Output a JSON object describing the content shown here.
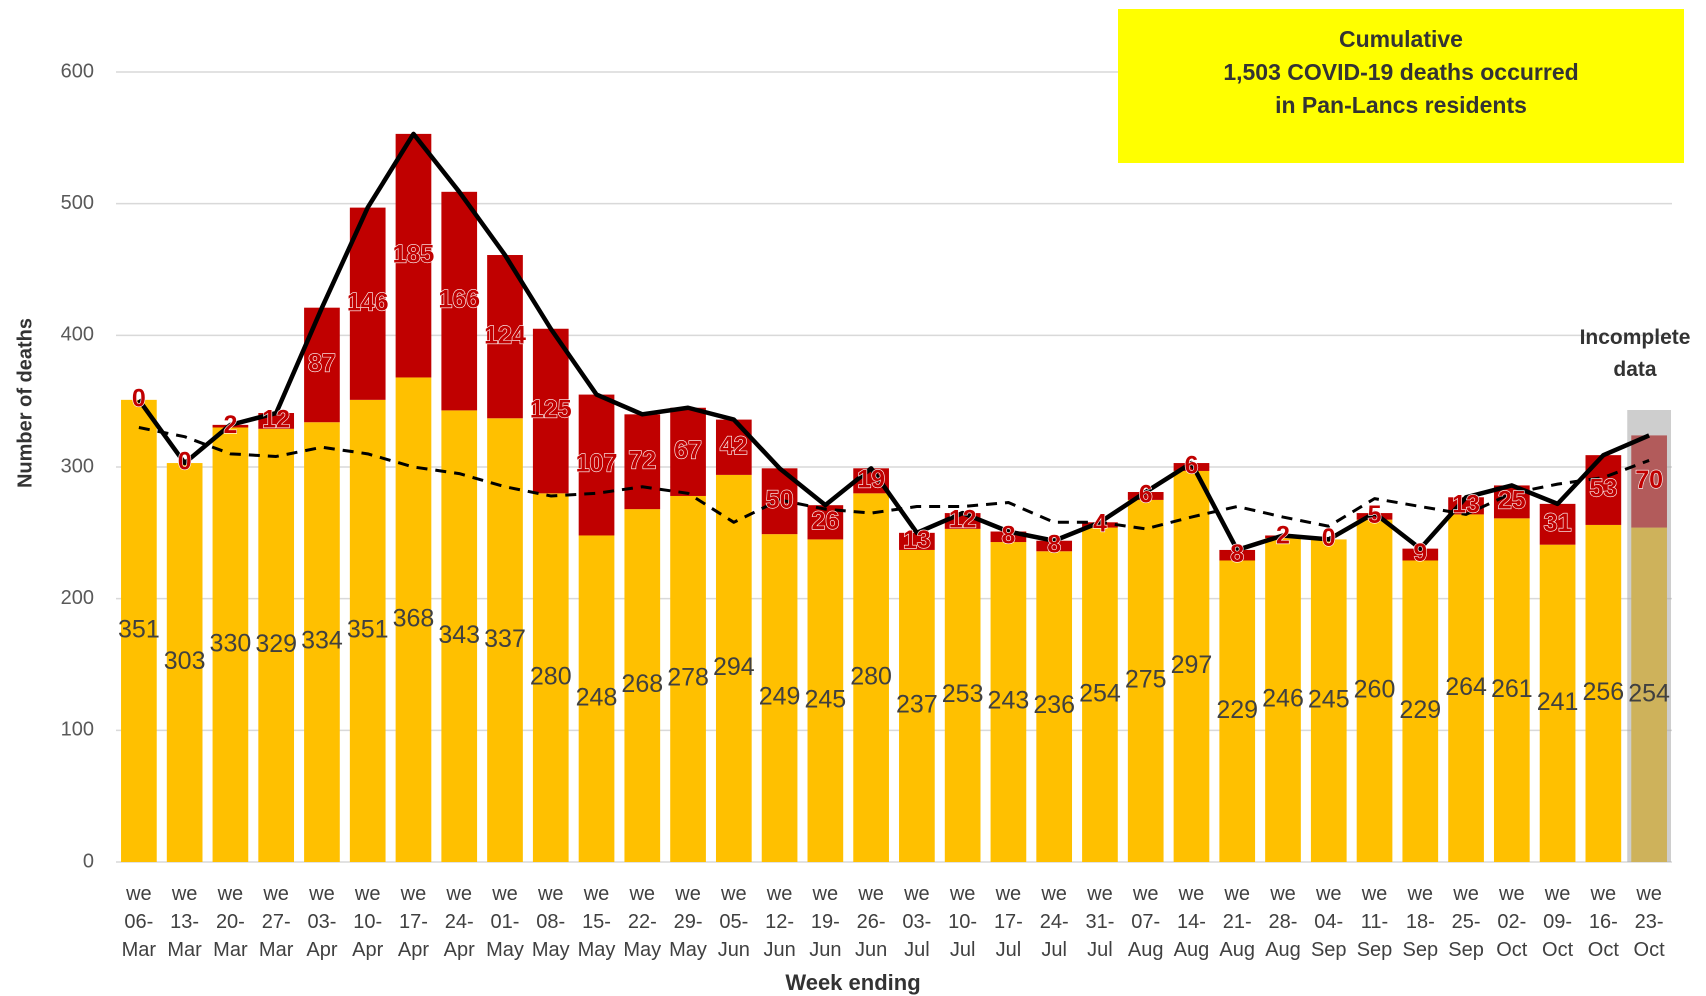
{
  "chart_data": {
    "type": "bar",
    "stacked": true,
    "ylabel": "Number of deaths",
    "xlabel": "Week ending",
    "annotation": "Cumulative\n1,503 COVID-19 deaths occurred\nin Pan-Lancs residents",
    "annotation_color": "#ffff00",
    "incomplete": {
      "text": "Incomplete\ndata",
      "category": "we\n23-\nOct",
      "color": "#a6a6a6"
    },
    "categories": [
      "we\n06-\nMar",
      "we\n13-\nMar",
      "we\n20-\nMar",
      "we\n27-\nMar",
      "we\n03-\nApr",
      "we\n10-\nApr",
      "we\n17-\nApr",
      "we\n24-\nApr",
      "we\n01-\nMay",
      "we\n08-\nMay",
      "we\n15-\nMay",
      "we\n22-\nMay",
      "we\n29-\nMay",
      "we\n05-\nJun",
      "we\n12-\nJun",
      "we\n19-\nJun",
      "we\n26-\nJun",
      "we\n03-\nJul",
      "we\n10-\nJul",
      "we\n17-\nJul",
      "we\n24-\nJul",
      "we\n31-\nJul",
      "we\n07-\nAug",
      "we\n14-\nAug",
      "we\n21-\nAug",
      "we\n28-\nAug",
      "we\n04-\nSep",
      "we\n11-\nSep",
      "we\n18-\nSep",
      "we\n25-\nSep",
      "we\n02-\nOct",
      "we\n09-\nOct",
      "we\n16-\nOct",
      "we\n23-\nOct"
    ],
    "series": [
      {
        "type": "bar",
        "color": "#ffc000",
        "label_color": "#404040",
        "values": [
          351,
          303,
          330,
          329,
          334,
          351,
          368,
          343,
          337,
          280,
          248,
          268,
          278,
          294,
          249,
          245,
          280,
          237,
          253,
          243,
          236,
          254,
          275,
          297,
          229,
          246,
          245,
          260,
          229,
          264,
          261,
          241,
          256,
          254
        ]
      },
      {
        "type": "bar",
        "color": "#c00000",
        "label_color": "#c00000",
        "values": [
          0,
          0,
          2,
          12,
          87,
          146,
          185,
          166,
          124,
          125,
          107,
          72,
          67,
          42,
          50,
          26,
          19,
          13,
          12,
          8,
          8,
          4,
          6,
          6,
          8,
          2,
          0,
          5,
          9,
          13,
          25,
          31,
          53,
          70
        ]
      },
      {
        "type": "line",
        "color": "#000000",
        "dashed": false,
        "values": [
          351,
          303,
          332,
          341,
          421,
          497,
          553,
          509,
          461,
          405,
          355,
          340,
          345,
          336,
          299,
          271,
          299,
          250,
          265,
          251,
          244,
          258,
          281,
          303,
          237,
          248,
          245,
          265,
          238,
          277,
          286,
          272,
          309,
          324
        ]
      },
      {
        "type": "line",
        "color": "#000000",
        "dashed": true,
        "values": [
          330,
          323,
          310,
          308,
          315,
          310,
          300,
          295,
          285,
          278,
          280,
          285,
          280,
          258,
          275,
          268,
          265,
          270,
          270,
          273,
          258,
          258,
          253,
          262,
          270,
          262,
          255,
          276,
          270,
          264,
          280,
          287,
          292,
          305
        ]
      }
    ],
    "ylim": [
      0,
      600
    ],
    "yticks": [
      0,
      100,
      200,
      300,
      400,
      500,
      600
    ],
    "grid": true
  }
}
